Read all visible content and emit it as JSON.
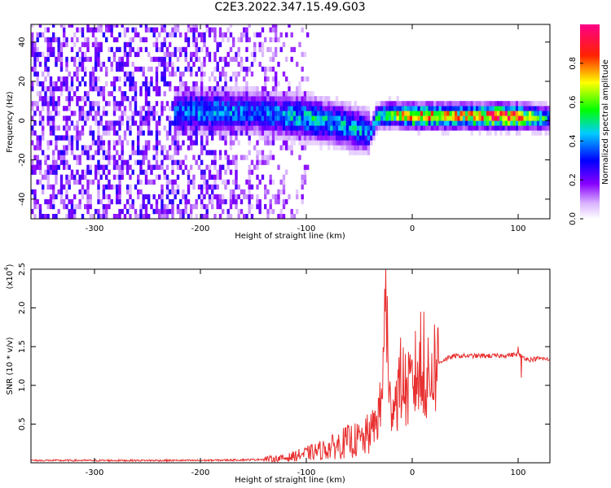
{
  "figure": {
    "title": "C2E3.2022.347.15.49.G03"
  },
  "chart_data": [
    {
      "type": "heatmap",
      "xlabel": "Height of straight line (km)",
      "ylabel": "Frequency (Hz)",
      "xlim": [
        -360,
        130
      ],
      "ylim": [
        -50,
        49
      ],
      "xticks": [
        -300,
        -200,
        -100,
        0,
        100
      ],
      "yticks": [
        -40,
        -20,
        0,
        20,
        40
      ],
      "colorbar": {
        "label": "Normalized spectral amplitude",
        "range": [
          0,
          1
        ],
        "ticks": [
          0.0,
          0.2,
          0.4,
          0.6,
          0.8
        ],
        "colormap": [
          "#ffffff",
          "#8800ff",
          "#0000ff",
          "#00ffff",
          "#00ff00",
          "#ffff00",
          "#ff0000",
          "#ff00aa"
        ]
      },
      "ridge": {
        "x": [
          -225,
          -200,
          -150,
          -100,
          -70,
          -50,
          -40,
          -35,
          -30,
          -20,
          0,
          50,
          90,
          130
        ],
        "center_freq": [
          3,
          4,
          3,
          0,
          -3,
          -6,
          -7,
          0,
          1,
          2,
          1,
          1,
          1,
          0
        ],
        "peak_amplitude": [
          0.35,
          0.4,
          0.35,
          0.45,
          0.4,
          0.4,
          0.35,
          0.45,
          0.5,
          0.6,
          0.75,
          0.7,
          0.9,
          0.4
        ]
      },
      "noise_region": {
        "x": [
          -360,
          -140
        ],
        "amplitude": 0.2
      }
    },
    {
      "type": "line",
      "xlabel": "Height of straight line (km)",
      "ylabel": "SNR (10 * v/v)",
      "scale_label": "(x10",
      "scale_exponent": "4",
      "scale_suffix": ")",
      "xlim": [
        -360,
        130
      ],
      "ylim": [
        0,
        2.5
      ],
      "xticks": [
        -300,
        -200,
        -100,
        0,
        100
      ],
      "yticks": [
        0.5,
        1.0,
        1.5,
        2.0,
        2.5
      ],
      "series": [
        {
          "color": "#e83030",
          "x": [
            -360,
            -300,
            -200,
            -150,
            -120,
            -100,
            -80,
            -60,
            -45,
            -35,
            -30,
            -27,
            -25,
            -22,
            -20,
            -15,
            -10,
            -5,
            0,
            5,
            10,
            15,
            20,
            30,
            40,
            60,
            80,
            100,
            110,
            120,
            130
          ],
          "values": [
            0.03,
            0.03,
            0.03,
            0.04,
            0.06,
            0.12,
            0.18,
            0.28,
            0.3,
            0.5,
            0.7,
            1.2,
            2.5,
            0.7,
            0.8,
            0.85,
            1.1,
            0.9,
            1.0,
            1.2,
            0.9,
            1.05,
            1.25,
            1.33,
            1.38,
            1.38,
            1.38,
            1.4,
            1.33,
            1.35,
            1.33
          ]
        }
      ],
      "spikes": [
        {
          "x": -25,
          "value": 2.5
        },
        {
          "x": 8,
          "value": 1.95
        },
        {
          "x": 11,
          "value": 1.95
        },
        {
          "x": 103,
          "value": 1.1
        },
        {
          "x": 100,
          "value": 1.5
        }
      ]
    }
  ]
}
